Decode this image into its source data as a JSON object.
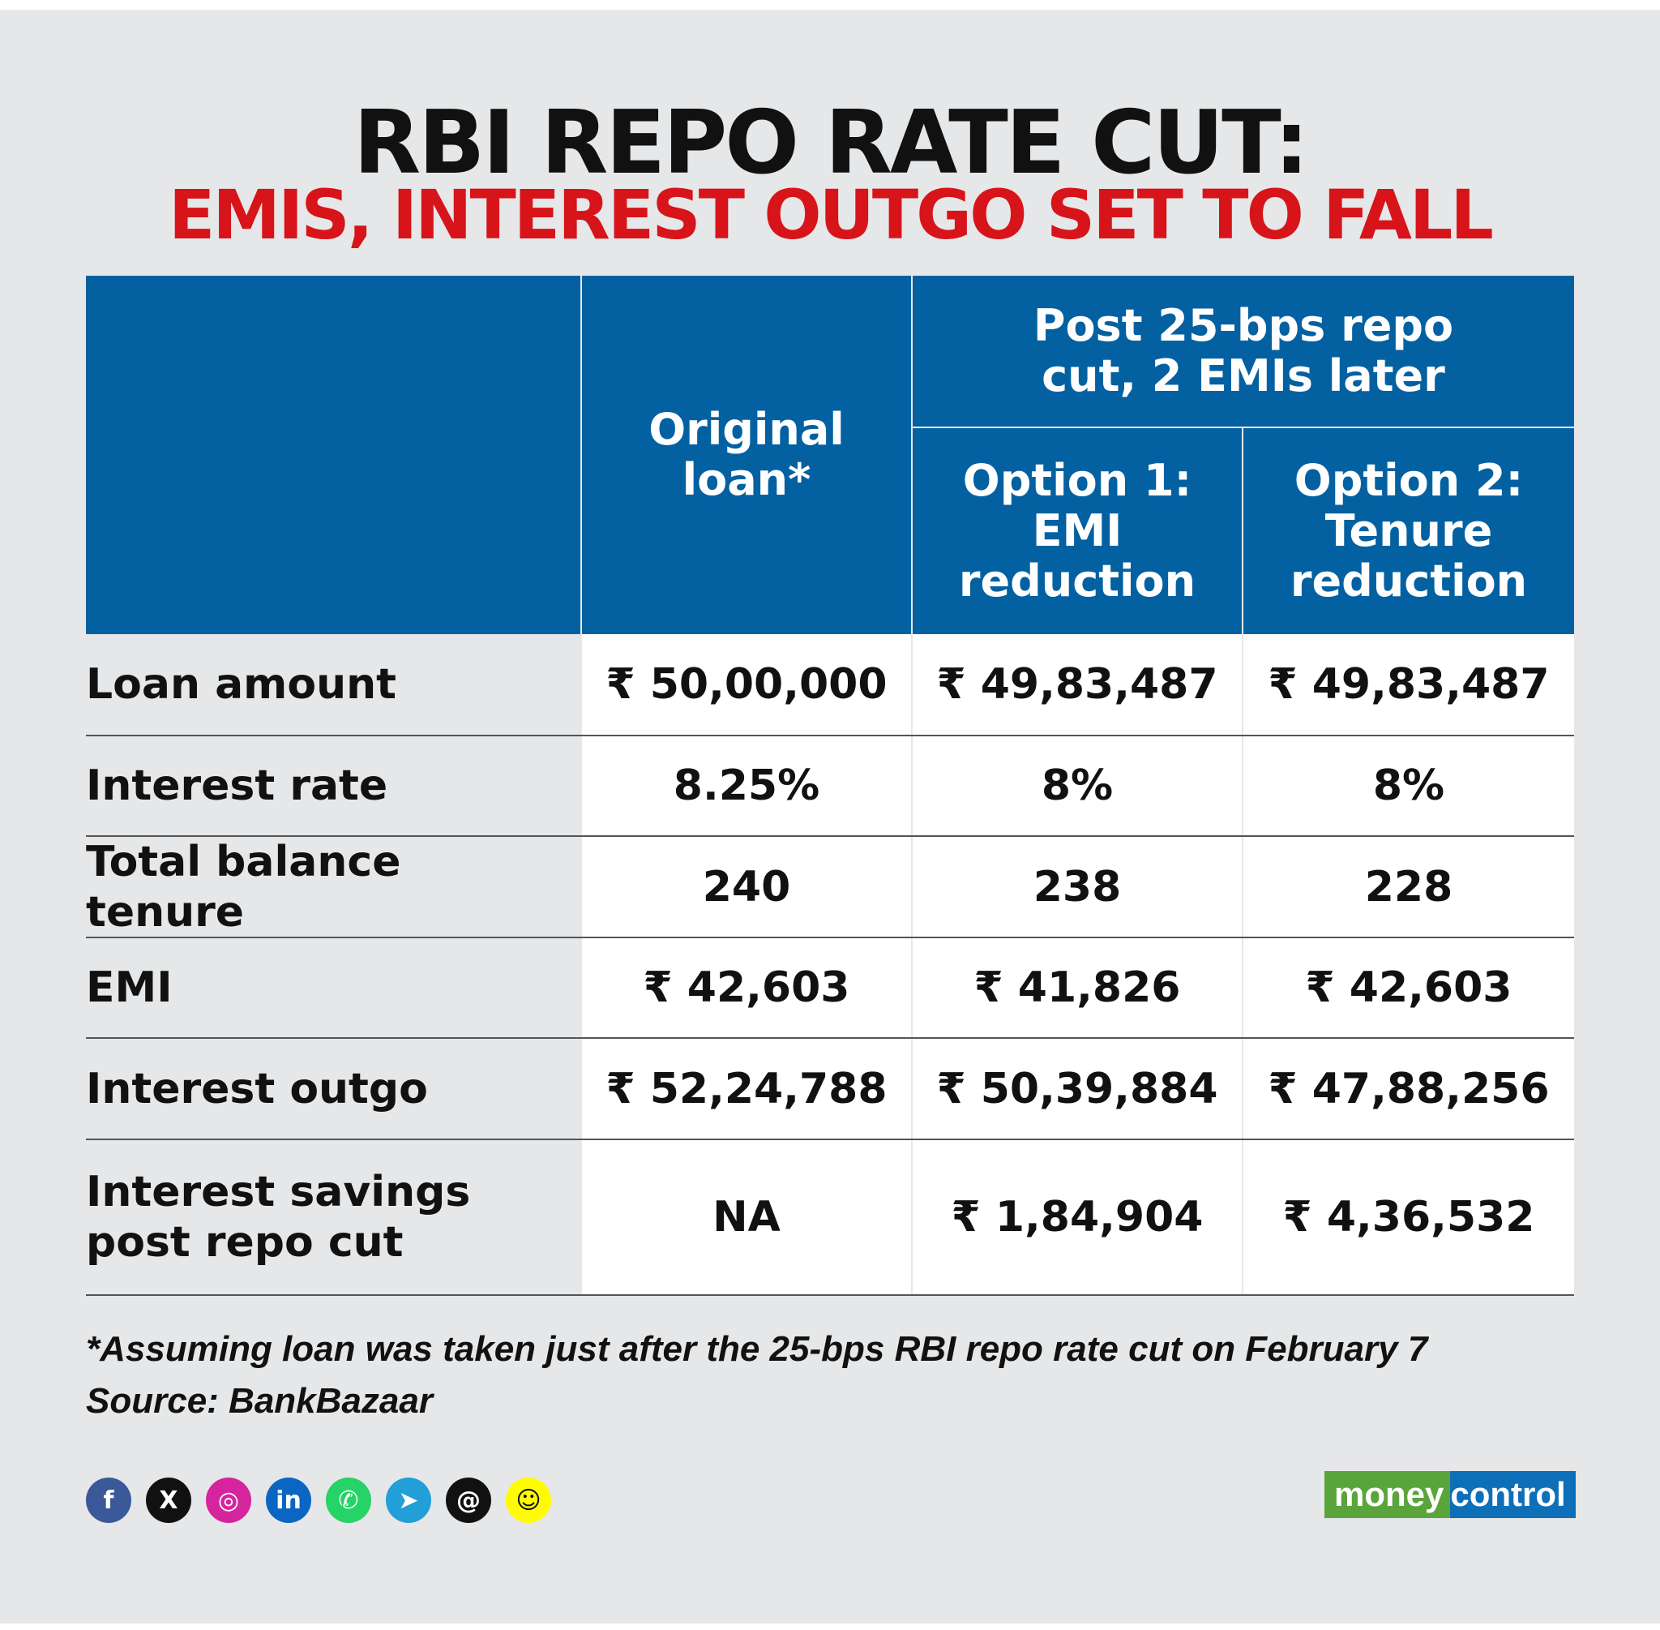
{
  "title": "RBI REPO RATE CUT:",
  "subtitle": "EMIS, INTEREST OUTGO SET TO FALL",
  "table": {
    "col_original": "Original loan*",
    "col_group": "Post 25-bps repo cut, 2 EMIs later",
    "col_option1": "Option 1: EMI reduction",
    "col_option2": "Option 2: Tenure reduction",
    "rows": [
      {
        "label": "Loan amount",
        "original": "₹ 50,00,000",
        "option1": "₹ 49,83,487",
        "option2": "₹ 49,83,487"
      },
      {
        "label": "Interest rate",
        "original": "8.25%",
        "option1": "8%",
        "option2": "8%"
      },
      {
        "label": "Total balance tenure",
        "original": "240",
        "option1": "238",
        "option2": "228"
      },
      {
        "label": "EMI",
        "original": "₹ 42,603",
        "option1": "₹ 41,826",
        "option2": "₹ 42,603"
      },
      {
        "label": "Interest outgo",
        "original": "₹ 52,24,788",
        "option1": "₹ 50,39,884",
        "option2": "₹ 47,88,256"
      },
      {
        "label": "Interest savings post repo cut",
        "original": "NA",
        "option1": "₹ 1,84,904",
        "option2": "₹ 4,36,532"
      }
    ]
  },
  "footnote": "*Assuming loan was taken just after the 25-bps RBI repo rate cut on February 7",
  "source": "Source: BankBazaar",
  "social_icons": [
    {
      "name": "facebook-icon",
      "glyph": "f",
      "color": "#3b5998"
    },
    {
      "name": "x-icon",
      "glyph": "X",
      "color": "#111111"
    },
    {
      "name": "instagram-icon",
      "glyph": "◎",
      "color": "#d6249f"
    },
    {
      "name": "linkedin-icon",
      "glyph": "in",
      "color": "#0a66c2"
    },
    {
      "name": "whatsapp-icon",
      "glyph": "✆",
      "color": "#25d366"
    },
    {
      "name": "telegram-icon",
      "glyph": "➤",
      "color": "#229ed9"
    },
    {
      "name": "threads-icon",
      "glyph": "@",
      "color": "#111111"
    },
    {
      "name": "snapchat-icon",
      "glyph": "☺",
      "color": "#fffc00"
    }
  ],
  "brand": {
    "part1": "money",
    "part2": "control"
  }
}
